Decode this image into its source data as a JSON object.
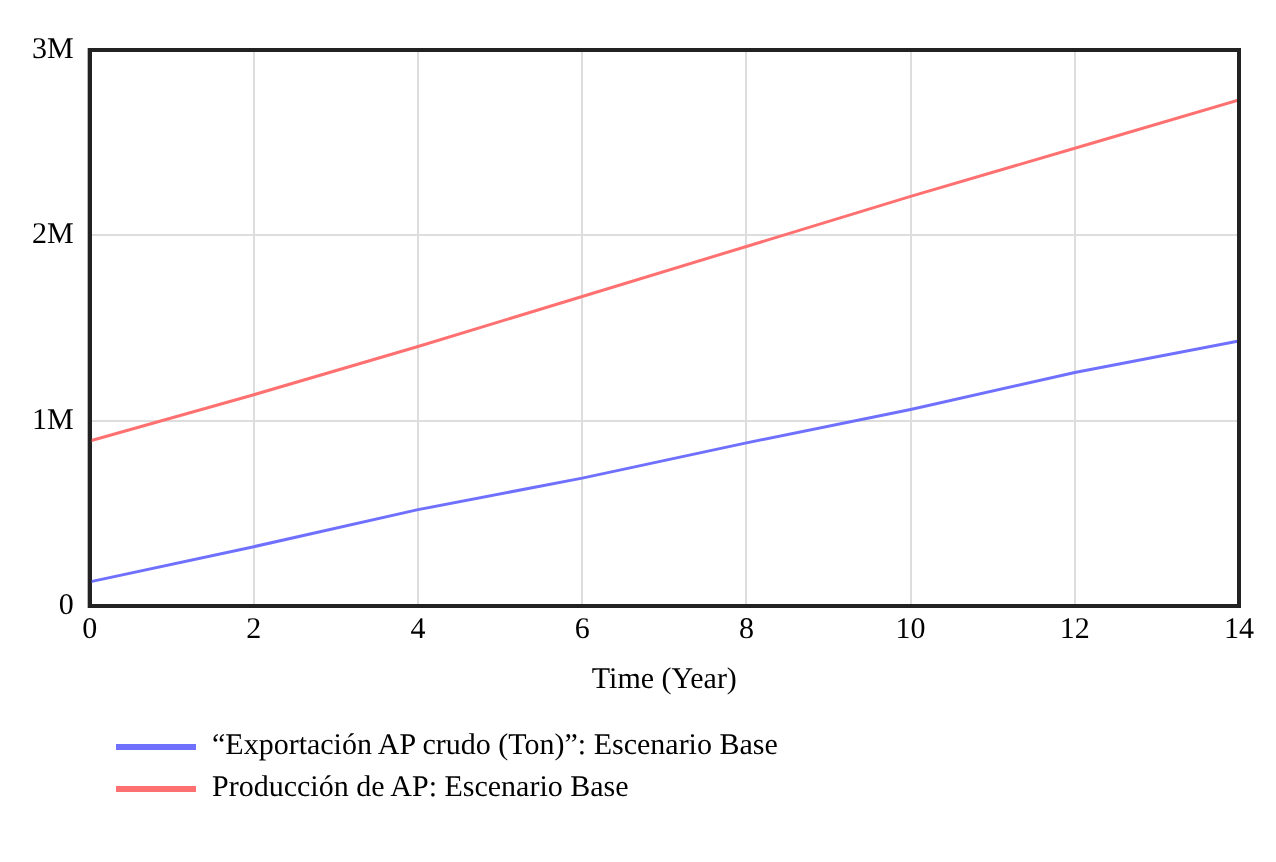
{
  "chart_data": {
    "type": "line",
    "xlabel": "Time (Year)",
    "x": [
      0,
      2,
      4,
      6,
      8,
      10,
      12,
      14
    ],
    "series": [
      {
        "name": "“Exportación AP crudo (Ton)”: Escenario Base",
        "color": "#7070ff",
        "values": [
          130000,
          320000,
          520000,
          690000,
          880000,
          1060000,
          1260000,
          1430000
        ]
      },
      {
        "name": "Producción de AP: Escenario Base",
        "color": "#ff7070",
        "values": [
          890000,
          1140000,
          1400000,
          1670000,
          1940000,
          2210000,
          2470000,
          2730000
        ]
      }
    ],
    "xlim": [
      0,
      14
    ],
    "xticks": [
      0,
      2,
      4,
      6,
      8,
      10,
      12,
      14
    ],
    "ylim": [
      0,
      3000000
    ],
    "yticks": [
      {
        "value": 0,
        "label": "0"
      },
      {
        "value": 1000000,
        "label": "1M"
      },
      {
        "value": 2000000,
        "label": "2M"
      },
      {
        "value": 3000000,
        "label": "3M"
      }
    ],
    "grid": true,
    "legend": "bottom",
    "marker": "none",
    "line_style": "solid"
  }
}
